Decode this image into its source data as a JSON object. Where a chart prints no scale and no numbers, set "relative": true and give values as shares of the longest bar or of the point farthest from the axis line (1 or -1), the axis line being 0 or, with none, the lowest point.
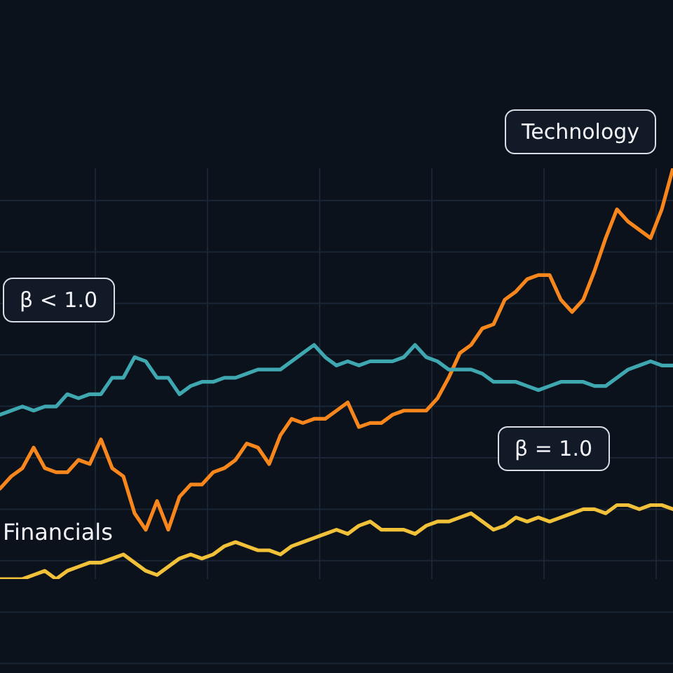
{
  "chart_data": {
    "type": "line",
    "relative": true,
    "grid": true,
    "legend": false,
    "marker": "none",
    "line_style": "solid",
    "categories": [
      null,
      null,
      null,
      null,
      null,
      null,
      null,
      null,
      null,
      null,
      null,
      null,
      null,
      null,
      null,
      null,
      null,
      null,
      null,
      null,
      null,
      null,
      null,
      null,
      null,
      null,
      null,
      null,
      null,
      null,
      null,
      null,
      null,
      null,
      null,
      null,
      null,
      null,
      null,
      null,
      null,
      null,
      null,
      null,
      null,
      null,
      null,
      null,
      null,
      null,
      null,
      null,
      null,
      null,
      null,
      null,
      null,
      null,
      null,
      null,
      null
    ],
    "series": [
      {
        "name": "Technology",
        "color": "#f7861c",
        "values": [
          0.22,
          0.25,
          0.27,
          0.32,
          0.27,
          0.26,
          0.26,
          0.29,
          0.28,
          0.34,
          0.27,
          0.25,
          0.16,
          0.12,
          0.19,
          0.12,
          0.2,
          0.23,
          0.23,
          0.26,
          0.27,
          0.29,
          0.33,
          0.32,
          0.28,
          0.35,
          0.39,
          0.38,
          0.39,
          0.39,
          0.41,
          0.43,
          0.37,
          0.38,
          0.38,
          0.4,
          0.41,
          0.41,
          0.41,
          0.44,
          0.49,
          0.55,
          0.57,
          0.61,
          0.62,
          0.68,
          0.7,
          0.73,
          0.74,
          0.74,
          0.68,
          0.65,
          0.68,
          0.75,
          0.83,
          0.9,
          0.87,
          0.85,
          0.83,
          0.9,
          1
        ]
      },
      {
        "name": "β < 1.0",
        "color": "#3fa7b0",
        "values": [
          0.4,
          0.41,
          0.42,
          0.41,
          0.42,
          0.42,
          0.45,
          0.44,
          0.45,
          0.45,
          0.49,
          0.49,
          0.54,
          0.53,
          0.49,
          0.49,
          0.45,
          0.47,
          0.48,
          0.48,
          0.49,
          0.49,
          0.5,
          0.51,
          0.51,
          0.51,
          0.53,
          0.55,
          0.57,
          0.54,
          0.52,
          0.53,
          0.52,
          0.53,
          0.53,
          0.53,
          0.54,
          0.57,
          0.54,
          0.53,
          0.51,
          0.51,
          0.51,
          0.5,
          0.48,
          0.48,
          0.48,
          0.47,
          0.46,
          0.47,
          0.48,
          0.48,
          0.48,
          0.47,
          0.47,
          0.49,
          0.51,
          0.52,
          0.53,
          0.52,
          0.52
        ]
      },
      {
        "name": "β = 1.0",
        "color": "#f2c13a",
        "values": [
          0.0,
          0,
          0.0,
          0.01,
          0.02,
          0.0,
          0.02,
          0.03,
          0.04,
          0.04,
          0.05,
          0.06,
          0.04,
          0.02,
          0.01,
          0.03,
          0.05,
          0.06,
          0.05,
          0.06,
          0.08,
          0.09,
          0.08,
          0.07,
          0.07,
          0.06,
          0.08,
          0.09,
          0.1,
          0.11,
          0.12,
          0.11,
          0.13,
          0.14,
          0.12,
          0.12,
          0.12,
          0.11,
          0.13,
          0.14,
          0.14,
          0.15,
          0.16,
          0.14,
          0.12,
          0.13,
          0.15,
          0.14,
          0.15,
          0.14,
          0.15,
          0.16,
          0.17,
          0.17,
          0.16,
          0.18,
          0.18,
          0.17,
          0.18,
          0.18,
          0.17
        ]
      }
    ],
    "annotations": [
      "Financials"
    ]
  }
}
